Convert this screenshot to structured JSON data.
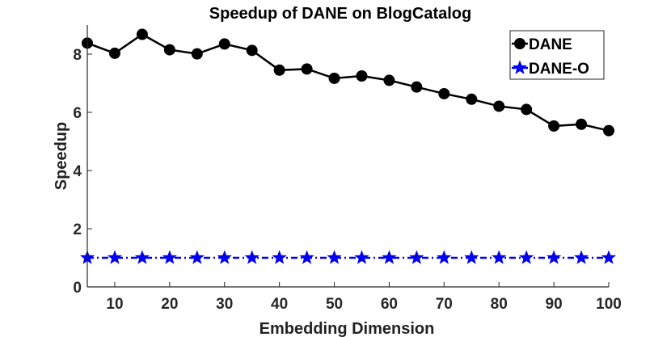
{
  "chart_data": {
    "type": "line",
    "title": "Speedup of DANE on BlogCatalog",
    "xlabel": "Embedding Dimension",
    "ylabel": "Speedup",
    "xlim": [
      5,
      100
    ],
    "ylim": [
      0,
      9
    ],
    "xticks": [
      10,
      20,
      30,
      40,
      50,
      60,
      70,
      80,
      90,
      100
    ],
    "yticks": [
      0,
      2,
      4,
      6,
      8
    ],
    "grid": false,
    "legend_position": "top-right",
    "x": [
      5,
      10,
      15,
      20,
      25,
      30,
      35,
      40,
      45,
      50,
      55,
      60,
      65,
      70,
      75,
      80,
      85,
      90,
      95,
      100
    ],
    "series": [
      {
        "name": "DANE",
        "color": "#000000",
        "marker": "circle",
        "line": "solid",
        "values": [
          8.38,
          8.03,
          8.68,
          8.15,
          8.01,
          8.35,
          8.13,
          7.45,
          7.49,
          7.17,
          7.25,
          7.1,
          6.87,
          6.64,
          6.45,
          6.21,
          6.1,
          5.53,
          5.59,
          5.37
        ]
      },
      {
        "name": "DANE-O",
        "color": "#0000ee",
        "marker": "star",
        "line": "dash-dot",
        "values": [
          1,
          1,
          1,
          1,
          1,
          1,
          1,
          1,
          1,
          1,
          1,
          1,
          1,
          1,
          1,
          1,
          1,
          1,
          1,
          1
        ]
      }
    ]
  }
}
